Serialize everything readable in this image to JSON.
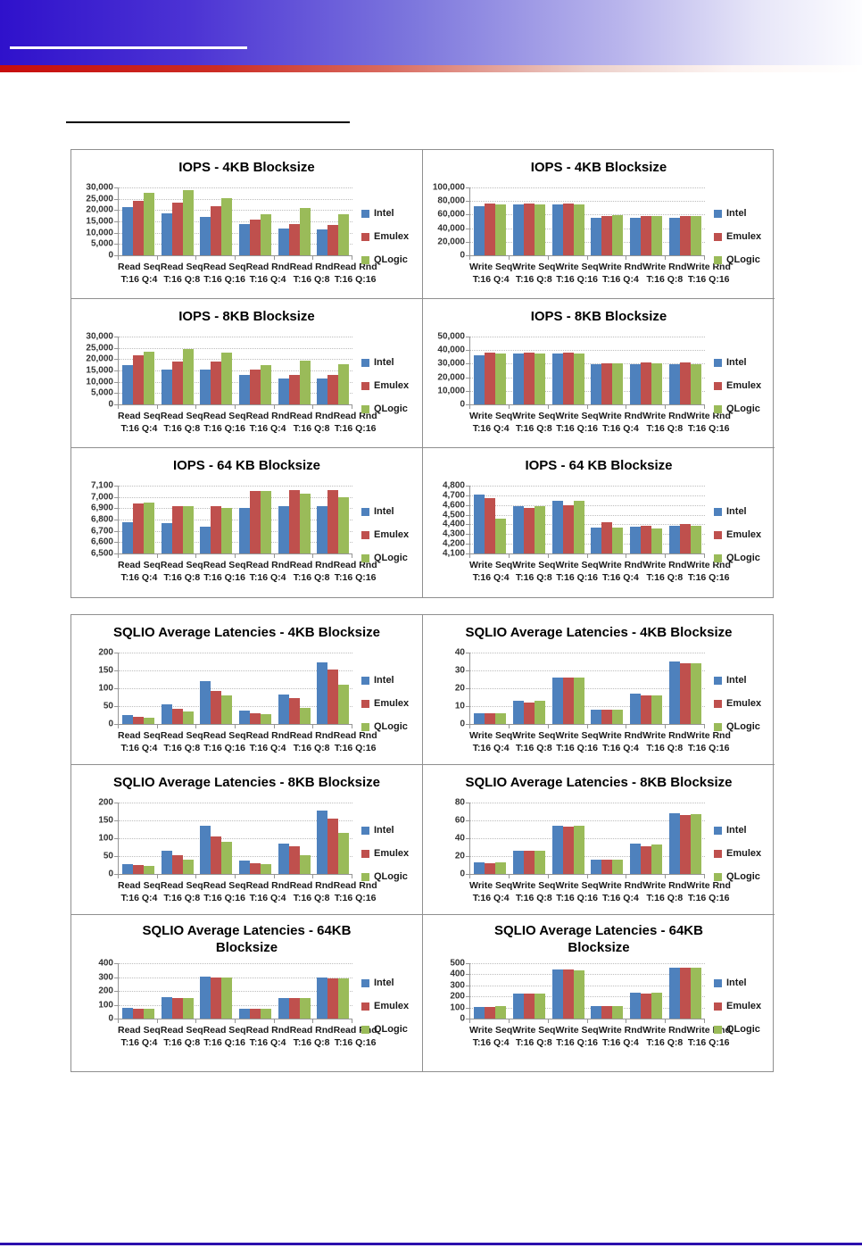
{
  "header": {
    "accent_blue": "#2F11CB",
    "accent_red": "#C70D0D",
    "footer_blue": "#2C10AD"
  },
  "legend": {
    "items": [
      {
        "label": "Intel",
        "color": "#4E81BD"
      },
      {
        "label": "Emulex",
        "color": "#BF504D"
      },
      {
        "label": "QLogic",
        "color": "#9ABB59"
      }
    ]
  },
  "chart_data": [
    {
      "type": "bar",
      "panel": 1,
      "title_lines": [
        "IOPS - 4KB Blocksize"
      ],
      "title": "IOPS - 4KB Blocksize",
      "categories": [
        {
          "l1": "Read Seq",
          "l2": "T:16 Q:4"
        },
        {
          "l1": "Read Seq",
          "l2": "T:16 Q:8"
        },
        {
          "l1": "Read Seq",
          "l2": "T:16 Q:16"
        },
        {
          "l1": "Read Rnd",
          "l2": "T:16 Q:4"
        },
        {
          "l1": "Read Rnd",
          "l2": "T:16 Q:8"
        },
        {
          "l1": "Read Rnd",
          "l2": "T:16 Q:16"
        }
      ],
      "ylim": [
        0,
        30000
      ],
      "ytick": 5000,
      "grid": true,
      "legend_position": "right",
      "series": [
        {
          "name": "Intel",
          "color": "#4E81BD",
          "values": [
            21500,
            18500,
            16800,
            13700,
            11900,
            11500
          ]
        },
        {
          "name": "Emulex",
          "color": "#BF504D",
          "values": [
            24000,
            23100,
            21800,
            15700,
            13900,
            13300
          ]
        },
        {
          "name": "QLogic",
          "color": "#9ABB59",
          "values": [
            27800,
            28700,
            25300,
            18000,
            21000,
            18200
          ]
        }
      ]
    },
    {
      "type": "bar",
      "panel": 1,
      "title_lines": [
        "IOPS - 4KB Blocksize"
      ],
      "title": "IOPS - 4KB Blocksize",
      "categories": [
        {
          "l1": "Write Seq",
          "l2": "T:16 Q:4"
        },
        {
          "l1": "Write Seq",
          "l2": "T:16 Q:8"
        },
        {
          "l1": "Write Seq",
          "l2": "T:16 Q:16"
        },
        {
          "l1": "Write Rnd",
          "l2": "T:16 Q:4"
        },
        {
          "l1": "Write Rnd",
          "l2": "T:16 Q:8"
        },
        {
          "l1": "Write Rnd",
          "l2": "T:16 Q:16"
        }
      ],
      "ylim": [
        0,
        100000
      ],
      "ytick": 20000,
      "grid": true,
      "legend_position": "right",
      "series": [
        {
          "name": "Intel",
          "color": "#4E81BD",
          "values": [
            72000,
            75000,
            75000,
            55500,
            55500,
            55500
          ]
        },
        {
          "name": "Emulex",
          "color": "#BF504D",
          "values": [
            76000,
            76000,
            76000,
            58000,
            58500,
            58500
          ]
        },
        {
          "name": "QLogic",
          "color": "#9ABB59",
          "values": [
            75000,
            75000,
            75000,
            59500,
            58000,
            57500
          ]
        }
      ]
    },
    {
      "type": "bar",
      "panel": 1,
      "title_lines": [
        "IOPS - 8KB Blocksize"
      ],
      "title": "IOPS - 8KB Blocksize",
      "categories": [
        {
          "l1": "Read Seq",
          "l2": "T:16 Q:4"
        },
        {
          "l1": "Read Seq",
          "l2": "T:16 Q:8"
        },
        {
          "l1": "Read Seq",
          "l2": "T:16 Q:16"
        },
        {
          "l1": "Read Rnd",
          "l2": "T:16 Q:4"
        },
        {
          "l1": "Read Rnd",
          "l2": "T:16 Q:8"
        },
        {
          "l1": "Read Rnd",
          "l2": "T:16 Q:16"
        }
      ],
      "ylim": [
        0,
        30000
      ],
      "ytick": 5000,
      "grid": true,
      "legend_position": "right",
      "series": [
        {
          "name": "Intel",
          "color": "#4E81BD",
          "values": [
            17500,
            15200,
            15200,
            13000,
            11600,
            11300
          ]
        },
        {
          "name": "Emulex",
          "color": "#BF504D",
          "values": [
            21700,
            19000,
            19000,
            15400,
            13100,
            13000
          ]
        },
        {
          "name": "QLogic",
          "color": "#9ABB59",
          "values": [
            23400,
            24300,
            22800,
            17400,
            19300,
            17700
          ]
        }
      ]
    },
    {
      "type": "bar",
      "panel": 1,
      "title_lines": [
        "IOPS - 8KB Blocksize"
      ],
      "title": "IOPS - 8KB Blocksize",
      "categories": [
        {
          "l1": "Write Seq",
          "l2": "T:16 Q:4"
        },
        {
          "l1": "Write Seq",
          "l2": "T:16 Q:8"
        },
        {
          "l1": "Write Seq",
          "l2": "T:16 Q:16"
        },
        {
          "l1": "Write Rnd",
          "l2": "T:16 Q:4"
        },
        {
          "l1": "Write Rnd",
          "l2": "T:16 Q:8"
        },
        {
          "l1": "Write Rnd",
          "l2": "T:16 Q:16"
        }
      ],
      "ylim": [
        0,
        50000
      ],
      "ytick": 10000,
      "grid": true,
      "legend_position": "right",
      "series": [
        {
          "name": "Intel",
          "color": "#4E81BD",
          "values": [
            36500,
            37500,
            37200,
            29800,
            29500,
            29500
          ]
        },
        {
          "name": "Emulex",
          "color": "#BF504D",
          "values": [
            38000,
            38000,
            38000,
            30300,
            31000,
            31000
          ]
        },
        {
          "name": "QLogic",
          "color": "#9ABB59",
          "values": [
            37500,
            37500,
            37500,
            30300,
            30300,
            29800
          ]
        }
      ]
    },
    {
      "type": "bar",
      "panel": 1,
      "title_lines": [
        "IOPS - 64 KB Blocksize"
      ],
      "title": "IOPS - 64 KB Blocksize",
      "categories": [
        {
          "l1": "Read Seq",
          "l2": "T:16 Q:4"
        },
        {
          "l1": "Read Seq",
          "l2": "T:16 Q:8"
        },
        {
          "l1": "Read Seq",
          "l2": "T:16 Q:16"
        },
        {
          "l1": "Read Rnd",
          "l2": "T:16 Q:4"
        },
        {
          "l1": "Read Rnd",
          "l2": "T:16 Q:8"
        },
        {
          "l1": "Read Rnd",
          "l2": "T:16 Q:16"
        }
      ],
      "ylim": [
        6500,
        7100
      ],
      "ytick": 100,
      "grid": true,
      "legend_position": "right",
      "series": [
        {
          "name": "Intel",
          "color": "#4E81BD",
          "values": [
            6780,
            6765,
            6740,
            6905,
            6920,
            6915
          ]
        },
        {
          "name": "Emulex",
          "color": "#BF504D",
          "values": [
            6945,
            6920,
            6915,
            7055,
            7060,
            7060
          ]
        },
        {
          "name": "QLogic",
          "color": "#9ABB59",
          "values": [
            6950,
            6920,
            6905,
            7050,
            7025,
            7000
          ]
        }
      ]
    },
    {
      "type": "bar",
      "panel": 1,
      "title_lines": [
        "IOPS - 64 KB Blocksize"
      ],
      "title": "IOPS - 64 KB Blocksize",
      "categories": [
        {
          "l1": "Write Seq",
          "l2": "T:16 Q:4"
        },
        {
          "l1": "Write Seq",
          "l2": "T:16 Q:8"
        },
        {
          "l1": "Write Seq",
          "l2": "T:16 Q:16"
        },
        {
          "l1": "Write Rnd",
          "l2": "T:16 Q:4"
        },
        {
          "l1": "Write Rnd",
          "l2": "T:16 Q:8"
        },
        {
          "l1": "Write Rnd",
          "l2": "T:16 Q:16"
        }
      ],
      "ylim": [
        4100,
        4800
      ],
      "ytick": 100,
      "grid": true,
      "legend_position": "right",
      "series": [
        {
          "name": "Intel",
          "color": "#4E81BD",
          "values": [
            4710,
            4590,
            4645,
            4365,
            4375,
            4390
          ]
        },
        {
          "name": "Emulex",
          "color": "#BF504D",
          "values": [
            4670,
            4570,
            4600,
            4420,
            4385,
            4400
          ]
        },
        {
          "name": "QLogic",
          "color": "#9ABB59",
          "values": [
            4460,
            4585,
            4645,
            4365,
            4355,
            4390
          ]
        }
      ]
    },
    {
      "type": "bar",
      "panel": 2,
      "title_lines": [
        "SQLIO Average Latencies - 4KB Blocksize"
      ],
      "title": "SQLIO Average Latencies - 4KB Blocksize",
      "categories": [
        {
          "l1": "Read Seq",
          "l2": "T:16 Q:4"
        },
        {
          "l1": "Read Seq",
          "l2": "T:16 Q:8"
        },
        {
          "l1": "Read Seq",
          "l2": "T:16 Q:16"
        },
        {
          "l1": "Read Rnd",
          "l2": "T:16 Q:4"
        },
        {
          "l1": "Read Rnd",
          "l2": "T:16 Q:8"
        },
        {
          "l1": "Read Rnd",
          "l2": "T:16 Q:16"
        }
      ],
      "ylim": [
        0,
        200
      ],
      "ytick": 50,
      "grid": true,
      "legend_position": "right",
      "series": [
        {
          "name": "Intel",
          "color": "#4E81BD",
          "values": [
            24,
            54,
            120,
            37,
            83,
            173
          ]
        },
        {
          "name": "Emulex",
          "color": "#BF504D",
          "values": [
            20,
            43,
            93,
            31,
            72,
            153
          ]
        },
        {
          "name": "QLogic",
          "color": "#9ABB59",
          "values": [
            18,
            35,
            79,
            28,
            46,
            110
          ]
        }
      ]
    },
    {
      "type": "bar",
      "panel": 2,
      "title_lines": [
        "SQLIO Average Latencies - 4KB Blocksize"
      ],
      "title": "SQLIO Average Latencies - 4KB Blocksize",
      "categories": [
        {
          "l1": "Write Seq",
          "l2": "T:16 Q:4"
        },
        {
          "l1": "Write Seq",
          "l2": "T:16 Q:8"
        },
        {
          "l1": "Write Seq",
          "l2": "T:16 Q:16"
        },
        {
          "l1": "Write Rnd",
          "l2": "T:16 Q:4"
        },
        {
          "l1": "Write Rnd",
          "l2": "T:16 Q:8"
        },
        {
          "l1": "Write Rnd",
          "l2": "T:16 Q:16"
        }
      ],
      "ylim": [
        0,
        40
      ],
      "ytick": 10,
      "grid": true,
      "legend_position": "right",
      "series": [
        {
          "name": "Intel",
          "color": "#4E81BD",
          "values": [
            6,
            13,
            26,
            8,
            17,
            35
          ]
        },
        {
          "name": "Emulex",
          "color": "#BF504D",
          "values": [
            6,
            12,
            26,
            8,
            16,
            34
          ]
        },
        {
          "name": "QLogic",
          "color": "#9ABB59",
          "values": [
            6,
            13,
            26,
            8,
            16,
            34
          ]
        }
      ]
    },
    {
      "type": "bar",
      "panel": 2,
      "title_lines": [
        "SQLIO Average Latencies - 8KB Blocksize"
      ],
      "title": "SQLIO Average Latencies - 8KB Blocksize",
      "categories": [
        {
          "l1": "Read Seq",
          "l2": "T:16 Q:4"
        },
        {
          "l1": "Read Seq",
          "l2": "T:16 Q:8"
        },
        {
          "l1": "Read Seq",
          "l2": "T:16 Q:16"
        },
        {
          "l1": "Read Rnd",
          "l2": "T:16 Q:4"
        },
        {
          "l1": "Read Rnd",
          "l2": "T:16 Q:8"
        },
        {
          "l1": "Read Rnd",
          "l2": "T:16 Q:16"
        }
      ],
      "ylim": [
        0,
        200
      ],
      "ytick": 50,
      "grid": true,
      "legend_position": "right",
      "series": [
        {
          "name": "Intel",
          "color": "#4E81BD",
          "values": [
            28,
            66,
            136,
            37,
            85,
            177
          ]
        },
        {
          "name": "Emulex",
          "color": "#BF504D",
          "values": [
            25,
            52,
            106,
            31,
            77,
            156
          ]
        },
        {
          "name": "QLogic",
          "color": "#9ABB59",
          "values": [
            23,
            41,
            89,
            28,
            52,
            116
          ]
        }
      ]
    },
    {
      "type": "bar",
      "panel": 2,
      "title_lines": [
        "SQLIO Average Latencies - 8KB Blocksize"
      ],
      "title": "SQLIO Average Latencies - 8KB Blocksize",
      "categories": [
        {
          "l1": "Write Seq",
          "l2": "T:16 Q:4"
        },
        {
          "l1": "Write Seq",
          "l2": "T:16 Q:8"
        },
        {
          "l1": "Write Seq",
          "l2": "T:16 Q:16"
        },
        {
          "l1": "Write Rnd",
          "l2": "T:16 Q:4"
        },
        {
          "l1": "Write Rnd",
          "l2": "T:16 Q:8"
        },
        {
          "l1": "Write Rnd",
          "l2": "T:16 Q:16"
        }
      ],
      "ylim": [
        0,
        80
      ],
      "ytick": 20,
      "grid": true,
      "legend_position": "right",
      "series": [
        {
          "name": "Intel",
          "color": "#4E81BD",
          "values": [
            13,
            26,
            54,
            16,
            34,
            68
          ]
        },
        {
          "name": "Emulex",
          "color": "#BF504D",
          "values": [
            12,
            26,
            53,
            16,
            31,
            66
          ]
        },
        {
          "name": "QLogic",
          "color": "#9ABB59",
          "values": [
            13,
            26,
            54,
            16,
            33,
            67
          ]
        }
      ]
    },
    {
      "type": "bar",
      "panel": 2,
      "title_lines": [
        "SQLIO Average Latencies - 64KB",
        "Blocksize"
      ],
      "title": "SQLIO Average Latencies - 64KB Blocksize",
      "categories": [
        {
          "l1": "Read Seq",
          "l2": "T:16 Q:4"
        },
        {
          "l1": "Read Seq",
          "l2": "T:16 Q:8"
        },
        {
          "l1": "Read Seq",
          "l2": "T:16 Q:16"
        },
        {
          "l1": "Read Rnd",
          "l2": "T:16 Q:4"
        },
        {
          "l1": "Read Rnd",
          "l2": "T:16 Q:8"
        },
        {
          "l1": "Read Rnd",
          "l2": "T:16 Q:16"
        }
      ],
      "ylim": [
        0,
        400
      ],
      "ytick": 100,
      "grid": true,
      "legend_position": "right",
      "series": [
        {
          "name": "Intel",
          "color": "#4E81BD",
          "values": [
            76,
            153,
            302,
            71,
            147,
            297
          ]
        },
        {
          "name": "Emulex",
          "color": "#BF504D",
          "values": [
            72,
            147,
            296,
            71,
            147,
            291
          ]
        },
        {
          "name": "QLogic",
          "color": "#9ABB59",
          "values": [
            72,
            147,
            297,
            71,
            147,
            291
          ]
        }
      ]
    },
    {
      "type": "bar",
      "panel": 2,
      "title_lines": [
        "SQLIO Average Latencies - 64KB",
        "Blocksize"
      ],
      "title": "SQLIO Average Latencies - 64KB Blocksize",
      "categories": [
        {
          "l1": "Write Seq",
          "l2": "T:16 Q:4"
        },
        {
          "l1": "Write Seq",
          "l2": "T:16 Q:8"
        },
        {
          "l1": "Write Seq",
          "l2": "T:16 Q:16"
        },
        {
          "l1": "Write Rnd",
          "l2": "T:16 Q:4"
        },
        {
          "l1": "Write Rnd",
          "l2": "T:16 Q:8"
        },
        {
          "l1": "Write Rnd",
          "l2": "T:16 Q:16"
        }
      ],
      "ylim": [
        0,
        500
      ],
      "ytick": 100,
      "grid": true,
      "legend_position": "right",
      "series": [
        {
          "name": "Intel",
          "color": "#4E81BD",
          "values": [
            108,
            222,
            440,
            115,
            235,
            460
          ]
        },
        {
          "name": "Emulex",
          "color": "#BF504D",
          "values": [
            108,
            222,
            440,
            115,
            228,
            460
          ]
        },
        {
          "name": "QLogic",
          "color": "#9ABB59",
          "values": [
            115,
            222,
            432,
            115,
            235,
            460
          ]
        }
      ]
    }
  ]
}
